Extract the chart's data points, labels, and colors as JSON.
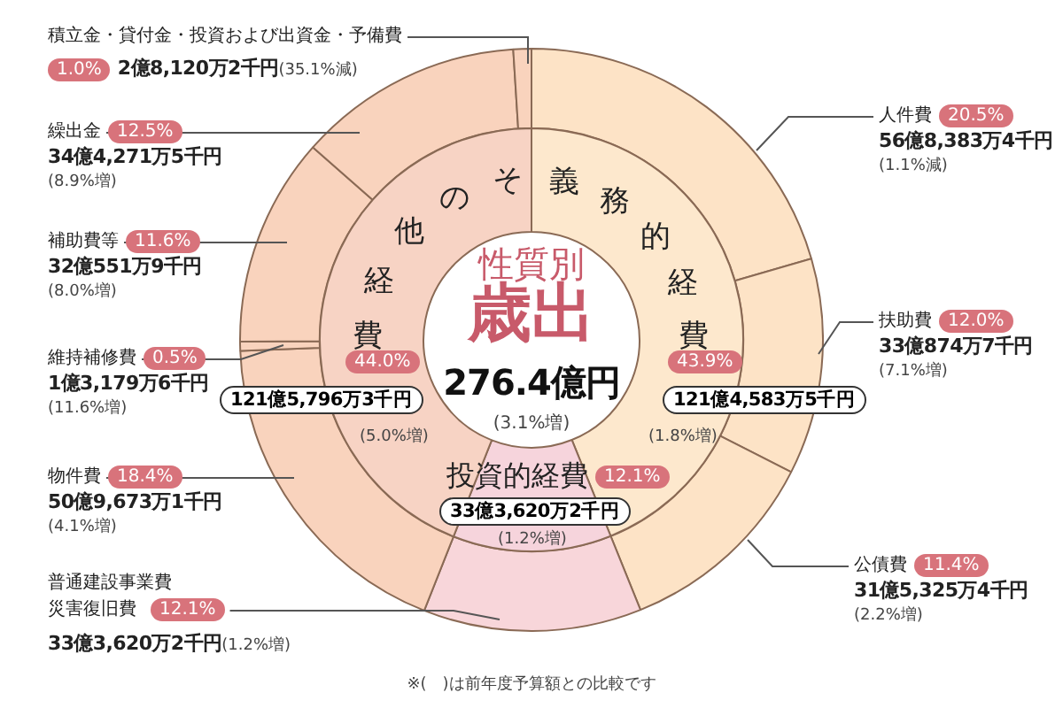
{
  "chart_data": [
    {
      "type": "donut",
      "categories": [
        "人件費",
        "扶助費",
        "公債費",
        "普通建設事業費災害復旧費",
        "物件費",
        "維持補修費",
        "補助費等",
        "繰出金",
        "積立金・貸付金・投資および出資金・予備費"
      ],
      "values": [
        20.5,
        12.0,
        11.4,
        12.1,
        18.4,
        0.5,
        11.6,
        12.5,
        1.0
      ],
      "colors": [
        "#fde3c6",
        "#fde3c6",
        "#fde3c6",
        "#f8d6da",
        "#f9d3bd",
        "#f9d3bd",
        "#f9d3bd",
        "#f9d3bd",
        "#f9d3bd"
      ],
      "value_labels": [
        "20.5%",
        "12.0%",
        "11.4%",
        "12.1%",
        "18.4%",
        "0.5%",
        "11.6%",
        "12.5%",
        "1.0%"
      ],
      "annotations": [
        "56億8,383万4千円",
        "(1.1%減)",
        "33億874万7千円",
        "(7.1%増)",
        "31億5,325万4千円",
        "(2.2%増)",
        "33億3,620万2千円",
        "(1.2%増)",
        "50億9,673万1千円",
        "(4.1%増)",
        "1億3,179万6千円",
        "(11.6%増)",
        "32億551万9千円",
        "(8.0%増)",
        "34億4,271万5千円",
        "(8.9%増)",
        "2億8,120万2千円",
        "(35.1%減)",
        "※(　)は前年度予算額との比較です"
      ]
    },
    {
      "type": "donut",
      "title": "性質別",
      "subtitle": "歳出",
      "categories": [
        "義務的経費",
        "投資的経費",
        "その他経費"
      ],
      "values": [
        43.9,
        12.1,
        44.0
      ],
      "colors": [
        "#fde8cd",
        "#f6d4dc",
        "#f7d3c4"
      ],
      "value_labels": [
        "43.9%",
        "12.1%",
        "44.0%"
      ],
      "annotations": [
        "121億4,583万5千円",
        "(1.8%増)",
        "33億3,620万2千円",
        "(1.2%増)",
        "121億5,796万3千円",
        "(5.0%増)",
        "276.4億円",
        "(3.1%増)"
      ]
    }
  ]
}
